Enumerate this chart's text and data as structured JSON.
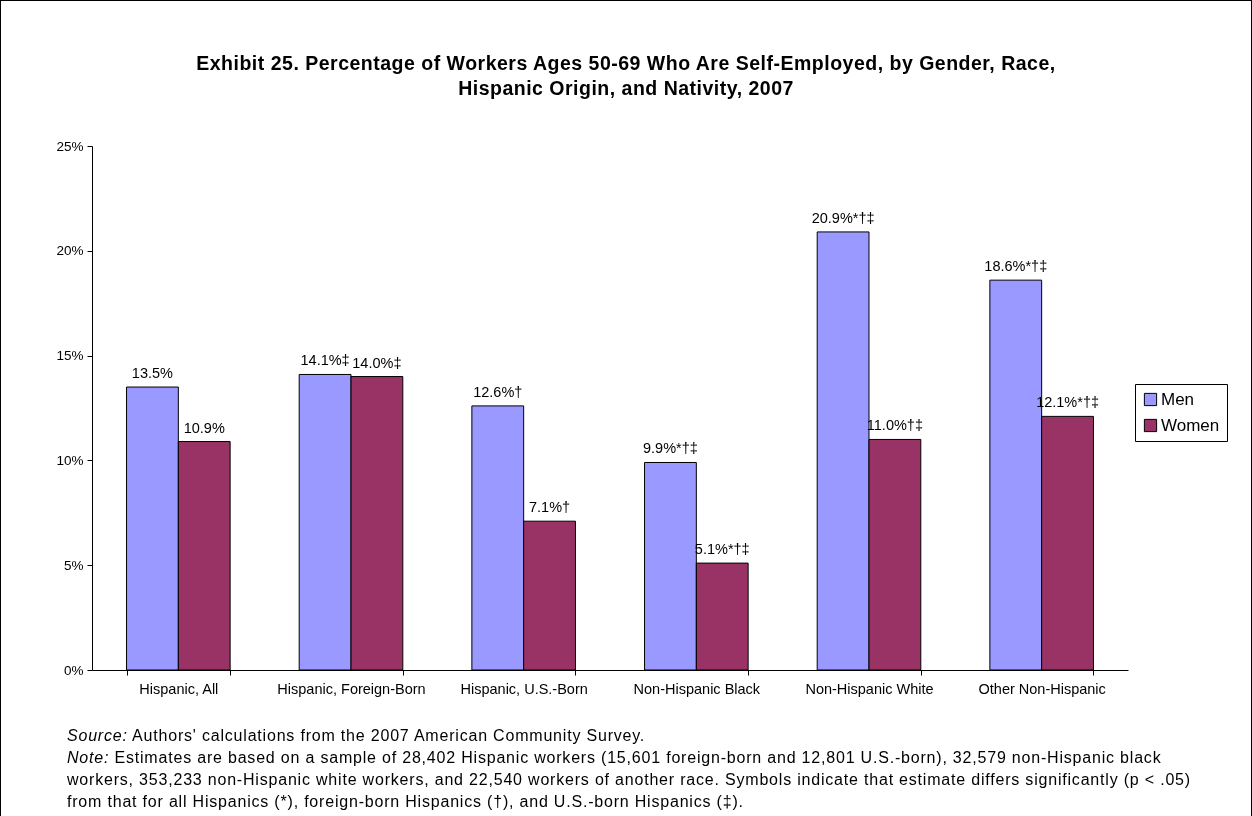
{
  "chart_data": {
    "type": "bar",
    "title": "Exhibit 25. Percentage of Workers Ages 50-69 Who Are Self-Employed, by Gender, Race, Hispanic Origin, and Nativity, 2007",
    "categories": [
      "Hispanic, All",
      "Hispanic, Foreign-Born",
      "Hispanic, U.S.-Born",
      "Non-Hispanic Black",
      "Non-Hispanic White",
      "Other Non-Hispanic"
    ],
    "series": [
      {
        "name": "Men",
        "color": "#9999ff",
        "values": [
          13.5,
          14.1,
          12.6,
          9.9,
          20.9,
          18.6
        ],
        "value_labels": [
          "13.5%",
          "14.1%‡",
          "12.6%†",
          "9.9%*†‡",
          "20.9%*†‡",
          "18.6%*†‡"
        ]
      },
      {
        "name": "Women",
        "color": "#993366",
        "values": [
          10.9,
          14.0,
          7.1,
          5.1,
          11.0,
          12.1
        ],
        "value_labels": [
          "10.9%",
          "14.0%‡",
          "7.1%†",
          "5.1%*†‡",
          "11.0%†‡",
          "12.1%*†‡"
        ]
      }
    ],
    "ylim": [
      0,
      25
    ],
    "yticks": [
      {
        "value": 0,
        "label": "0%"
      },
      {
        "value": 5,
        "label": "5%"
      },
      {
        "value": 10,
        "label": "10%"
      },
      {
        "value": 15,
        "label": "15%"
      },
      {
        "value": 20,
        "label": "20%"
      },
      {
        "value": 25,
        "label": "25%"
      }
    ],
    "grid": false,
    "legend": "right",
    "annotations": [
      "Source: Authors' calculations from the 2007 American Community Survey.",
      "Note: Estimates are based on a sample of 28,402 Hispanic workers (15,601 foreign-born and 12,801 U.S.-born), 32,579 non-Hispanic black workers, 353,233 non-Hispanic white workers, and 22,540 workers of another race.  Symbols indicate that estimate differs significantly (p < .05) from that for all Hispanics (*), foreign-born Hispanics (†), and U.S.-born Hispanics (‡)."
    ]
  }
}
